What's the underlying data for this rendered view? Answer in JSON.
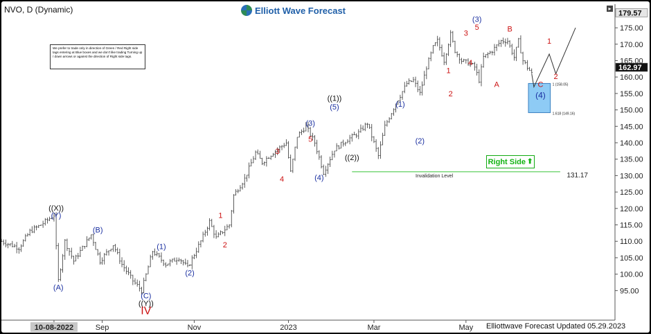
{
  "header": {
    "symbol": "NVO, D (Dynamic)",
    "logo": "Elliott Wave Forecast"
  },
  "note": "We prefer to trade only in direction of Green / Red Right side tags entering at Blue boxes and we don't like trading Turning up / down arrows or against the direction of Right side tags.",
  "right_side_tag": "Right Side",
  "footer": "Elliottwave Forecast Updated 05.29.2023",
  "colors": {
    "wave_red": "#cc1111",
    "wave_blue": "#1a2fa0",
    "box": "#8ecbf5",
    "tag_green": "#12b312",
    "invalidation": "#39c339"
  },
  "chart_data": {
    "type": "ohlc",
    "title": "NVO, D (Dynamic)",
    "xlabel": "",
    "ylabel": "",
    "ylim": [
      86,
      180.5
    ],
    "y_ticks": [
      "95.00",
      "100.00",
      "105.00",
      "110.00",
      "115.00",
      "120.00",
      "125.00",
      "130.00",
      "135.00",
      "140.00",
      "145.00",
      "150.00",
      "155.00",
      "160.00",
      "165.00",
      "170.00",
      "175.00"
    ],
    "x_ticks": [
      {
        "label": "10-08-2022",
        "t": 24,
        "highlight": true
      },
      {
        "label": "Sep",
        "t": 46
      },
      {
        "label": "Nov",
        "t": 88
      },
      {
        "label": "2023",
        "t": 131
      },
      {
        "label": "Mar",
        "t": 170
      },
      {
        "label": "May",
        "t": 212
      }
    ],
    "x_range": [
      0,
      280
    ],
    "last_price": "162.97",
    "high_price": "179.57",
    "path": [
      [
        0,
        110
      ],
      [
        8,
        108
      ],
      [
        13,
        113
      ],
      [
        18,
        115
      ],
      [
        22,
        117
      ],
      [
        24,
        118
      ],
      [
        26,
        98
      ],
      [
        29,
        110
      ],
      [
        33,
        104
      ],
      [
        41,
        112
      ],
      [
        45,
        104
      ],
      [
        51,
        109
      ],
      [
        55,
        103
      ],
      [
        60,
        98
      ],
      [
        64,
        95
      ],
      [
        69,
        107
      ],
      [
        75,
        103
      ],
      [
        81,
        105
      ],
      [
        85,
        102
      ],
      [
        91,
        110
      ],
      [
        95,
        116
      ],
      [
        98,
        111
      ],
      [
        104,
        115
      ],
      [
        106,
        124
      ],
      [
        111,
        129
      ],
      [
        116,
        137
      ],
      [
        119,
        134
      ],
      [
        124,
        137
      ],
      [
        130,
        140
      ],
      [
        132,
        131
      ],
      [
        135,
        142
      ],
      [
        139,
        145
      ],
      [
        143,
        140
      ],
      [
        147,
        131
      ],
      [
        152,
        138
      ],
      [
        158,
        141
      ],
      [
        163,
        143
      ],
      [
        167,
        146
      ],
      [
        170,
        140
      ],
      [
        172,
        136
      ],
      [
        175,
        145
      ],
      [
        180,
        152
      ],
      [
        185,
        158
      ],
      [
        188,
        159
      ],
      [
        191,
        155
      ],
      [
        194,
        163
      ],
      [
        197,
        169
      ],
      [
        199,
        171
      ],
      [
        202,
        165
      ],
      [
        205,
        173
      ],
      [
        207,
        168
      ],
      [
        210,
        165
      ],
      [
        214,
        164
      ],
      [
        216,
        163
      ],
      [
        218,
        159
      ],
      [
        220,
        166
      ],
      [
        224,
        168
      ],
      [
        228,
        171
      ],
      [
        231,
        171
      ],
      [
        234,
        166
      ],
      [
        236,
        171
      ],
      [
        238,
        165
      ],
      [
        240,
        163
      ],
      [
        242,
        161
      ]
    ],
    "projection": [
      [
        243,
        157
      ],
      [
        250,
        167
      ],
      [
        253,
        161
      ],
      [
        262,
        175
      ]
    ],
    "blue_box": {
      "y_top": 158.05,
      "y_bottom": 149.16,
      "label_top": "1 (158.05)",
      "label_bottom": "1.618 (149.16)"
    },
    "invalidation": {
      "y": 131.17,
      "label": "Invalidation Level",
      "value_label": "131.17"
    },
    "wave_labels": [
      {
        "t": 25,
        "y": 120.2,
        "text": "((X))",
        "color": "black",
        "size": 11
      },
      {
        "t": 25,
        "y": 118,
        "text": "(Y)",
        "color": "blue",
        "size": 11
      },
      {
        "t": 26,
        "y": 96,
        "text": "(A)",
        "color": "blue",
        "size": 11
      },
      {
        "t": 44,
        "y": 113.5,
        "text": "(B)",
        "color": "blue",
        "size": 11
      },
      {
        "t": 66,
        "y": 93.5,
        "text": "(C)",
        "color": "blue",
        "size": 11
      },
      {
        "t": 66,
        "y": 91.2,
        "text": "((Y))",
        "color": "black",
        "size": 11
      },
      {
        "t": 66,
        "y": 88.6,
        "text": "IV",
        "color": "red",
        "size": 16
      },
      {
        "t": 73,
        "y": 108.5,
        "text": "(1)",
        "color": "blue",
        "size": 11
      },
      {
        "t": 86,
        "y": 100.5,
        "text": "(2)",
        "color": "blue",
        "size": 11
      },
      {
        "t": 100,
        "y": 118,
        "text": "1",
        "color": "red",
        "size": 11
      },
      {
        "t": 102,
        "y": 109,
        "text": "2",
        "color": "red",
        "size": 11
      },
      {
        "t": 126,
        "y": 137.5,
        "text": "3",
        "color": "red",
        "size": 11
      },
      {
        "t": 128,
        "y": 129,
        "text": "4",
        "color": "red",
        "size": 11
      },
      {
        "t": 141,
        "y": 146,
        "text": "(3)",
        "color": "blue",
        "size": 11
      },
      {
        "t": 141,
        "y": 141.2,
        "text": "5",
        "color": "red",
        "size": 11
      },
      {
        "t": 145,
        "y": 129.5,
        "text": "(4)",
        "color": "blue",
        "size": 11
      },
      {
        "t": 152,
        "y": 153.6,
        "text": "((1))",
        "color": "black",
        "size": 11
      },
      {
        "t": 152,
        "y": 151,
        "text": "(5)",
        "color": "blue",
        "size": 11
      },
      {
        "t": 160,
        "y": 135.6,
        "text": "((2))",
        "color": "black",
        "size": 11
      },
      {
        "t": 182,
        "y": 151.8,
        "text": "(1)",
        "color": "blue",
        "size": 11
      },
      {
        "t": 191,
        "y": 140.6,
        "text": "(2)",
        "color": "blue",
        "size": 11
      },
      {
        "t": 204,
        "y": 162,
        "text": "1",
        "color": "red",
        "size": 11
      },
      {
        "t": 205,
        "y": 155,
        "text": "2",
        "color": "red",
        "size": 11
      },
      {
        "t": 212,
        "y": 173.4,
        "text": "3",
        "color": "red",
        "size": 11
      },
      {
        "t": 214,
        "y": 164.5,
        "text": "4",
        "color": "red",
        "size": 11
      },
      {
        "t": 217,
        "y": 177.7,
        "text": "(3)",
        "color": "blue",
        "size": 11
      },
      {
        "t": 217,
        "y": 175.2,
        "text": "5",
        "color": "red",
        "size": 11
      },
      {
        "t": 226,
        "y": 157.8,
        "text": "A",
        "color": "red",
        "size": 11
      },
      {
        "t": 232,
        "y": 174.7,
        "text": "B",
        "color": "red",
        "size": 11
      },
      {
        "t": 246,
        "y": 157.8,
        "text": "C",
        "color": "red",
        "size": 11
      },
      {
        "t": 246,
        "y": 154.5,
        "text": "(4)",
        "color": "blue",
        "size": 12
      },
      {
        "t": 250,
        "y": 171,
        "text": "1",
        "color": "red",
        "size": 11
      },
      {
        "t": 253,
        "y": 160.3,
        "text": "2",
        "color": "red",
        "size": 11
      }
    ]
  }
}
